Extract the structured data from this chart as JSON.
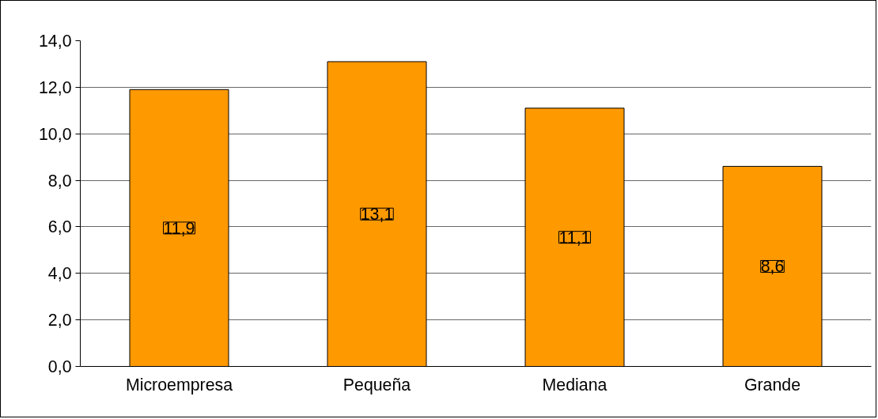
{
  "chart_data": {
    "type": "bar",
    "categories": [
      "Microempresa",
      "Pequeña",
      "Mediana",
      "Grande"
    ],
    "values": [
      11.9,
      13.1,
      11.1,
      8.6
    ],
    "color": "#ff9900",
    "value_labels": [
      "11,9",
      "13,1",
      "11,1",
      "8,6"
    ],
    "ylim": [
      0,
      14
    ],
    "yticks": [
      {
        "value": 0,
        "label": "0,0"
      },
      {
        "value": 2,
        "label": "2,0"
      },
      {
        "value": 4,
        "label": "4,0"
      },
      {
        "value": 6,
        "label": "6,0"
      },
      {
        "value": 8,
        "label": "8,0"
      },
      {
        "value": 10,
        "label": "10,0"
      },
      {
        "value": 12,
        "label": "12,0"
      },
      {
        "value": 14,
        "label": "14,0"
      }
    ],
    "grid": "y"
  }
}
